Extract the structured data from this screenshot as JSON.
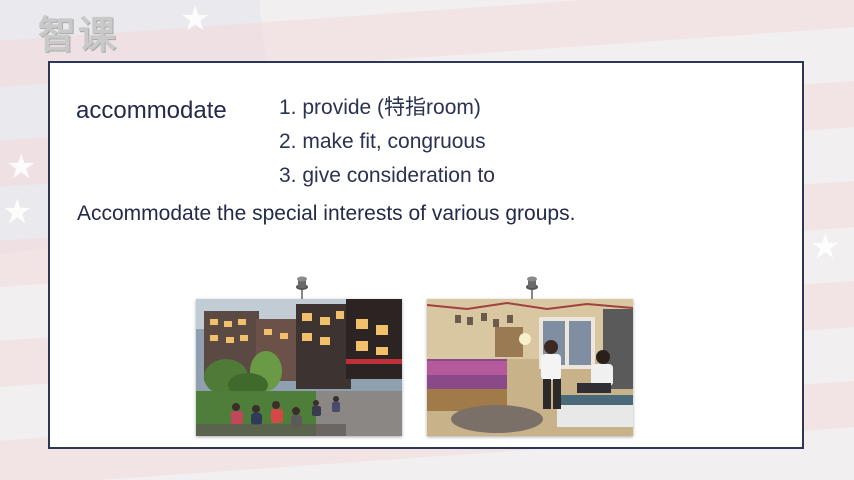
{
  "watermark": {
    "logo_text": "智课"
  },
  "slide": {
    "word": "accommodate",
    "definitions": [
      "1. provide (特指room)",
      "2. make fit, congruous",
      "3. give consideration to"
    ],
    "example": "Accommodate the special interests of various groups."
  },
  "photos": [
    {
      "subject": "outdoor-dormitory-courtyard"
    },
    {
      "subject": "dorm-room-interior"
    }
  ],
  "colors": {
    "text": "#232a4a",
    "border": "#2c3656",
    "card": "#ffffff"
  },
  "icons": [
    "pushpin-icon"
  ]
}
